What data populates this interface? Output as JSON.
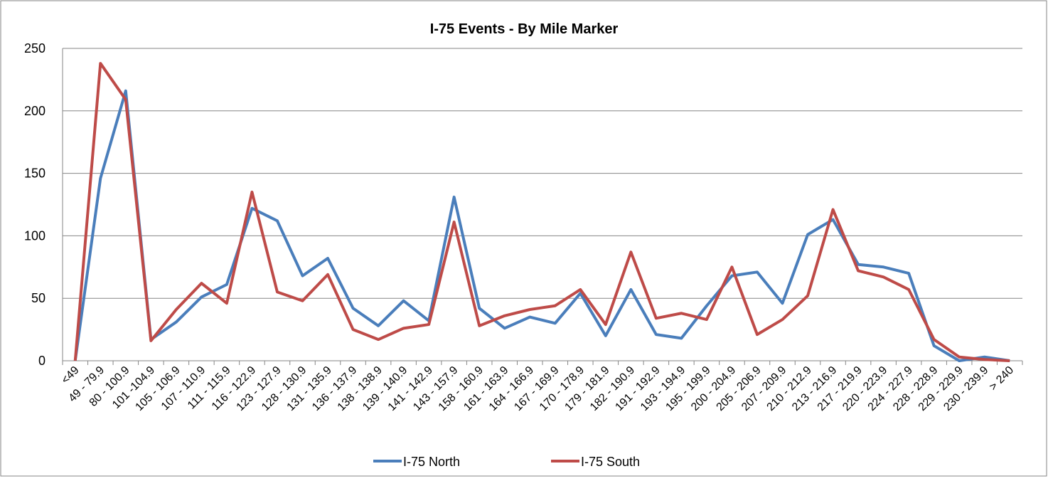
{
  "chart_data": {
    "type": "line",
    "title": "I-75 Events - By Mile Marker",
    "categories": [
      "<49",
      "49 - 79.9",
      "80 - 100.9",
      "101 -104.9",
      "105 - 106.9",
      "107 - 110.9",
      "111 - 115.9",
      "116 - 122.9",
      "123 - 127.9",
      "128 - 130.9",
      "131 - 135.9",
      "136 - 137.9",
      "138 - 138.9",
      "139 - 140.9",
      "141 - 142.9",
      "143 - 157.9",
      "158 - 160.9",
      "161 - 163.9",
      "164 - 166.9",
      "167 - 169.9",
      "170 - 178.9",
      "179 - 181.9",
      "182 - 190.9",
      "191 - 192.9",
      "193 - 194.9",
      "195 - 199.9",
      "200 - 204.9",
      "205 - 206.9",
      "207 - 209.9",
      "210 - 212.9",
      "213 - 216.9",
      "217 - 219.9",
      "220 - 223.9",
      "224 - 227.9",
      "228 - 228.9",
      "229 - 229.9",
      "230 - 239.9",
      "> 240"
    ],
    "series": [
      {
        "name": "I-75 North",
        "color": "#4a7ebb",
        "values": [
          0,
          146,
          216,
          17,
          31,
          51,
          61,
          122,
          112,
          68,
          82,
          42,
          28,
          48,
          32,
          131,
          42,
          26,
          35,
          30,
          54,
          20,
          57,
          21,
          18,
          44,
          68,
          71,
          46,
          101,
          113,
          77,
          75,
          70,
          12,
          0,
          3,
          0
        ]
      },
      {
        "name": "I-75 South",
        "color": "#be4b48",
        "values": [
          0,
          238,
          209,
          16,
          41,
          62,
          46,
          135,
          55,
          48,
          69,
          25,
          17,
          26,
          29,
          111,
          28,
          36,
          41,
          44,
          57,
          29,
          87,
          34,
          38,
          33,
          75,
          21,
          33,
          52,
          121,
          72,
          67,
          57,
          17,
          3,
          1,
          0
        ]
      }
    ],
    "ylim": [
      0,
      250
    ],
    "yticks": [
      0,
      50,
      100,
      150,
      200,
      250
    ],
    "grid": true,
    "legend": "bottom"
  }
}
